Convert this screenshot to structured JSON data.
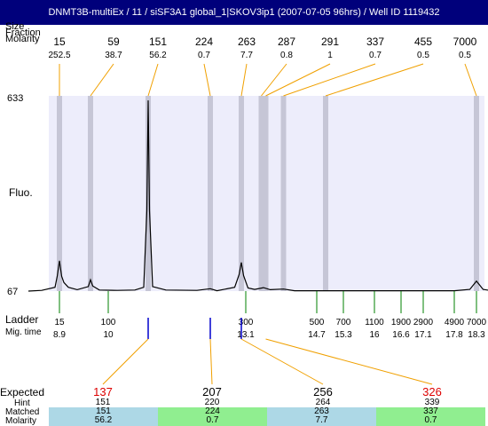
{
  "title": "DNMT3B-multiEx / 11 / siSF3A1 global_1|SKOV3ip1 (2007-07-05 96hrs) / Well ID 1119432",
  "labels": {
    "header_size": "Size",
    "header_fraction": "Fraction",
    "header_molarity": "Molarity",
    "y_max": "633",
    "y_min": "67",
    "y_axis": "Fluo.",
    "ladder": "Ladder",
    "mig_time": "Mig. time",
    "expected": "Expected",
    "hint": "Hint",
    "matched": "Matched",
    "molarity": "Molarity"
  },
  "colors": {
    "title_bg": "#00007b",
    "plot_bg": "#ededfb",
    "band": "#c6c6d6",
    "trace": "#000000",
    "ladder_tick": "#008000",
    "sample_tick": "#0000cc",
    "connector": "#f0a000",
    "expected_highlight": "#dd0000",
    "matched_blue": "#add8e6",
    "matched_green": "#90ee90"
  },
  "chart_data": {
    "type": "line",
    "title": "DNMT3B-multiEx / 11 / siSF3A1 global_1|SKOV3ip1 (2007-07-05 96hrs) / Well ID 1119432",
    "xlabel": "Mig. time",
    "ylabel": "Fluo.",
    "ylim": [
      67,
      633
    ],
    "xlim": [
      8.2,
      18.7
    ],
    "peaks": [
      {
        "size": "15",
        "molarity": "252.5",
        "time": 8.9
      },
      {
        "size": "59",
        "molarity": "38.7",
        "time": 9.6
      },
      {
        "size": "151",
        "molarity": "56.2",
        "time": 10.9
      },
      {
        "size": "224",
        "molarity": "0.7",
        "time": 12.3
      },
      {
        "size": "263",
        "molarity": "7.7",
        "time": 13.0
      },
      {
        "size": "287",
        "molarity": "0.8",
        "time": 13.45
      },
      {
        "size": "291",
        "molarity": "1",
        "time": 13.55
      },
      {
        "size": "337",
        "molarity": "0.7",
        "time": 13.95
      },
      {
        "size": "455",
        "molarity": "0.5",
        "time": 14.9
      },
      {
        "size": "7000",
        "molarity": "0.5",
        "time": 18.3
      }
    ],
    "trace": [
      {
        "time": 8.2,
        "fluo": 67
      },
      {
        "time": 8.5,
        "fluo": 69
      },
      {
        "time": 8.8,
        "fluo": 78
      },
      {
        "time": 8.85,
        "fluo": 110
      },
      {
        "time": 8.9,
        "fluo": 155
      },
      {
        "time": 8.95,
        "fluo": 110
      },
      {
        "time": 9.0,
        "fluo": 92
      },
      {
        "time": 9.1,
        "fluo": 78
      },
      {
        "time": 9.3,
        "fluo": 71
      },
      {
        "time": 9.55,
        "fluo": 80
      },
      {
        "time": 9.6,
        "fluo": 100
      },
      {
        "time": 9.65,
        "fluo": 82
      },
      {
        "time": 9.8,
        "fluo": 70
      },
      {
        "time": 10.2,
        "fluo": 69
      },
      {
        "time": 10.6,
        "fluo": 70
      },
      {
        "time": 10.8,
        "fluo": 78
      },
      {
        "time": 10.87,
        "fluo": 300
      },
      {
        "time": 10.9,
        "fluo": 620
      },
      {
        "time": 10.93,
        "fluo": 300
      },
      {
        "time": 11.0,
        "fluo": 80
      },
      {
        "time": 11.3,
        "fluo": 70
      },
      {
        "time": 12.0,
        "fluo": 69
      },
      {
        "time": 12.3,
        "fluo": 74
      },
      {
        "time": 12.45,
        "fluo": 68
      },
      {
        "time": 12.85,
        "fluo": 78
      },
      {
        "time": 12.95,
        "fluo": 115
      },
      {
        "time": 13.0,
        "fluo": 150
      },
      {
        "time": 13.05,
        "fluo": 112
      },
      {
        "time": 13.15,
        "fluo": 76
      },
      {
        "time": 13.3,
        "fluo": 72
      },
      {
        "time": 13.5,
        "fluo": 77
      },
      {
        "time": 13.65,
        "fluo": 71
      },
      {
        "time": 13.95,
        "fluo": 73
      },
      {
        "time": 14.2,
        "fluo": 68
      },
      {
        "time": 15.0,
        "fluo": 68
      },
      {
        "time": 16.5,
        "fluo": 68
      },
      {
        "time": 17.8,
        "fluo": 68
      },
      {
        "time": 18.15,
        "fluo": 72
      },
      {
        "time": 18.3,
        "fluo": 96
      },
      {
        "time": 18.45,
        "fluo": 72
      },
      {
        "time": 18.7,
        "fluo": 67
      }
    ],
    "ladder": [
      {
        "size": "15",
        "time": "8.9"
      },
      {
        "size": "100",
        "time": "10"
      },
      {
        "size": "300",
        "time": "13.1"
      },
      {
        "size": "500",
        "time": "14.7"
      },
      {
        "size": "700",
        "time": "15.3"
      },
      {
        "size": "1100",
        "time": "16"
      },
      {
        "size": "1900",
        "time": "16.6"
      },
      {
        "size": "2900",
        "time": "17.1"
      },
      {
        "size": "4900",
        "time": "17.8"
      },
      {
        "size": "7000",
        "time": "18.3"
      }
    ],
    "sample_markers": [
      10.9,
      12.3,
      13.0
    ],
    "expected": [
      {
        "expected": "137",
        "hint": "151",
        "matched": "151",
        "molarity": "56.2",
        "highlight": true,
        "shade": "blue"
      },
      {
        "expected": "207",
        "hint": "220",
        "matched": "224",
        "molarity": "0.7",
        "highlight": false,
        "shade": "green"
      },
      {
        "expected": "256",
        "hint": "264",
        "matched": "263",
        "molarity": "7.7",
        "highlight": false,
        "shade": "blue"
      },
      {
        "expected": "326",
        "hint": "339",
        "matched": "337",
        "molarity": "0.7",
        "highlight": true,
        "shade": "green"
      }
    ]
  }
}
